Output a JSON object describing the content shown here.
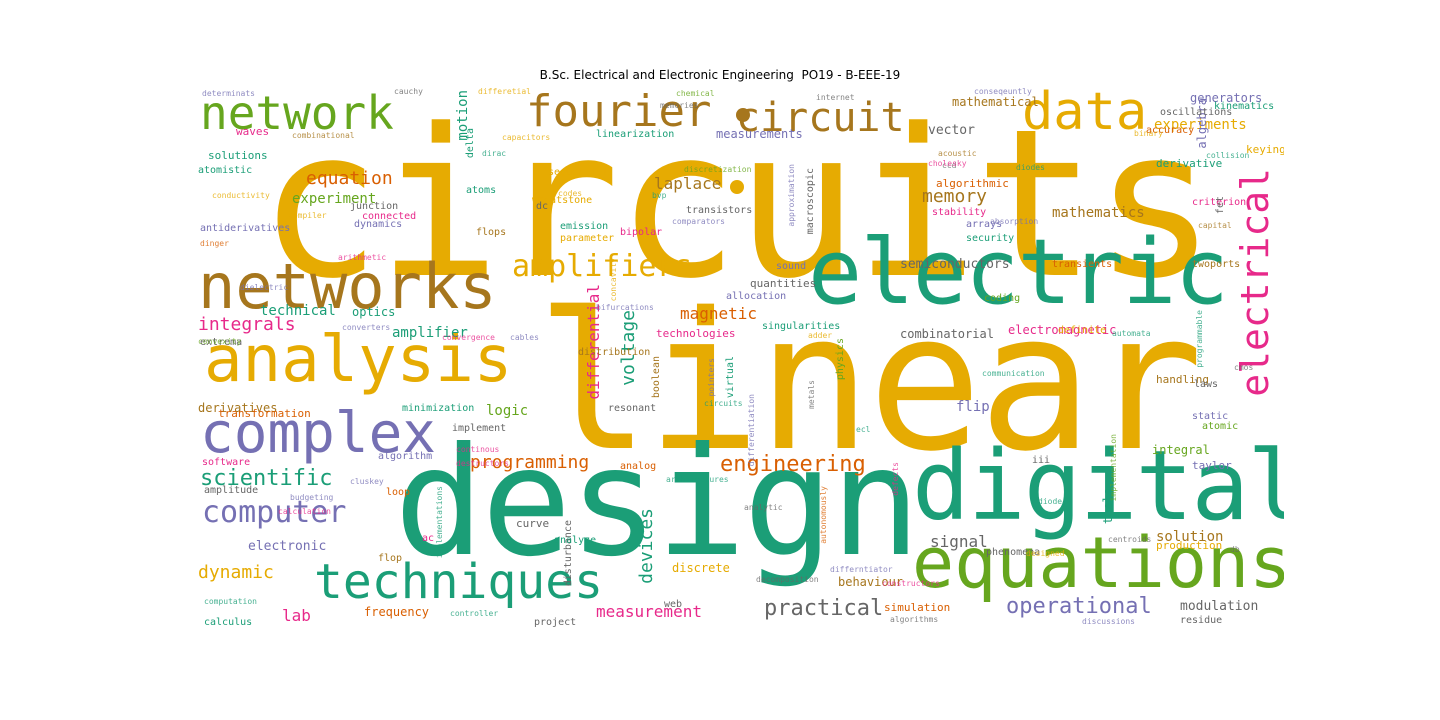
{
  "title": "B.Sc. Electrical and Electronic Engineering  PO19 - B-EEE-19",
  "colors": {
    "gold": "#e6ab02",
    "teal": "#1b9e77",
    "purple": "#7570b3",
    "pink": "#e7298a",
    "olive": "#66a61e",
    "brown": "#a6761d",
    "orange": "#d95f02",
    "gray": "#666666"
  },
  "words": [
    {
      "t": "circuits",
      "c": "gold"
    },
    {
      "t": "linear",
      "c": "gold"
    },
    {
      "t": "design",
      "c": "teal"
    },
    {
      "t": "electric",
      "c": "teal"
    },
    {
      "t": "digital",
      "c": "teal"
    },
    {
      "t": "equations",
      "c": "olive"
    },
    {
      "t": "networks",
      "c": "brown"
    },
    {
      "t": "analysis",
      "c": "gold"
    },
    {
      "t": "complex",
      "c": "purple"
    },
    {
      "t": "techniques",
      "c": "teal"
    },
    {
      "t": "network",
      "c": "olive"
    },
    {
      "t": "fourier",
      "c": "brown"
    },
    {
      "t": "circuit",
      "c": "brown"
    },
    {
      "t": "data",
      "c": "gold"
    },
    {
      "t": "electrical",
      "c": "pink"
    },
    {
      "t": "amplifiers",
      "c": "gold"
    },
    {
      "t": "computer",
      "c": "purple"
    },
    {
      "t": "operational",
      "c": "purple"
    },
    {
      "t": "engineering",
      "c": "orange"
    },
    {
      "t": "programming",
      "c": "orange"
    },
    {
      "t": "practical",
      "c": "gray"
    },
    {
      "t": "scientific",
      "c": "teal"
    },
    {
      "t": "dynamic",
      "c": "gold"
    },
    {
      "t": "integrals",
      "c": "pink"
    },
    {
      "t": "equation",
      "c": "orange"
    },
    {
      "t": "measurement",
      "c": "pink"
    },
    {
      "t": "laplace",
      "c": "brown"
    },
    {
      "t": "memory",
      "c": "brown"
    },
    {
      "t": "voltage",
      "c": "teal"
    },
    {
      "t": "devices",
      "c": "teal"
    },
    {
      "t": "differential",
      "c": "pink"
    },
    {
      "t": "magnetic",
      "c": "orange"
    },
    {
      "t": "experiment",
      "c": "olive"
    },
    {
      "t": "technical",
      "c": "teal"
    },
    {
      "t": "solution",
      "c": "brown"
    },
    {
      "t": "signal",
      "c": "gray"
    },
    {
      "t": "lab",
      "c": "pink"
    },
    {
      "t": "experiments",
      "c": "gold"
    },
    {
      "t": "mathematics",
      "c": "brown"
    },
    {
      "t": "motion",
      "c": "teal"
    },
    {
      "t": "logic",
      "c": "olive"
    },
    {
      "t": "flip",
      "c": "purple"
    },
    {
      "t": "amplifier",
      "c": "teal"
    },
    {
      "t": "electronic",
      "c": "purple"
    },
    {
      "t": "modulation",
      "c": "gray"
    },
    {
      "t": "semiconductors",
      "c": "gray"
    },
    {
      "t": "combinatorial",
      "c": "gray"
    },
    {
      "t": "electromagnetic",
      "c": "pink"
    },
    {
      "t": "integral",
      "c": "olive"
    },
    {
      "t": "mathematical",
      "c": "brown"
    },
    {
      "t": "generators",
      "c": "purple"
    },
    {
      "t": "measurements",
      "c": "purple"
    },
    {
      "t": "vector",
      "c": "gray"
    },
    {
      "t": "optics",
      "c": "teal"
    },
    {
      "t": "derivatives",
      "c": "brown"
    },
    {
      "t": "transformation",
      "c": "orange"
    },
    {
      "t": "frequency",
      "c": "orange"
    },
    {
      "t": "discrete",
      "c": "gold"
    },
    {
      "t": "behaviour",
      "c": "brown"
    },
    {
      "t": "curve",
      "c": "gray"
    },
    {
      "t": "quantities",
      "c": "gray"
    },
    {
      "t": "technologies",
      "c": "pink"
    },
    {
      "t": "algorithmic",
      "c": "orange"
    },
    {
      "t": "algebra",
      "c": "purple"
    },
    {
      "t": "derivative",
      "c": "teal"
    },
    {
      "t": "handling",
      "c": "brown"
    },
    {
      "t": "production",
      "c": "gold"
    },
    {
      "t": "simulation",
      "c": "orange"
    },
    {
      "t": "tools",
      "c": "teal"
    },
    {
      "t": "taylor",
      "c": "purple"
    },
    {
      "t": "keying",
      "c": "gold"
    },
    {
      "t": "waves",
      "c": "pink"
    },
    {
      "t": "solutions",
      "c": "teal"
    },
    {
      "t": "atomistic",
      "c": "teal"
    },
    {
      "t": "oscillations",
      "c": "gray"
    },
    {
      "t": "kinematics",
      "c": "teal"
    },
    {
      "t": "accuracy",
      "c": "orange"
    },
    {
      "t": "stability",
      "c": "pink"
    },
    {
      "t": "sequential",
      "c": "gold"
    },
    {
      "t": "wheatstone",
      "c": "gold"
    },
    {
      "t": "connected",
      "c": "pink"
    },
    {
      "t": "junction",
      "c": "gray"
    },
    {
      "t": "dynamics",
      "c": "purple"
    },
    {
      "t": "atoms",
      "c": "teal"
    },
    {
      "t": "delta",
      "c": "teal"
    },
    {
      "t": "bipolar",
      "c": "pink"
    },
    {
      "t": "emission",
      "c": "teal"
    },
    {
      "t": "parameter",
      "c": "gold"
    },
    {
      "t": "transistors",
      "c": "gray"
    },
    {
      "t": "macroscopic",
      "c": "gray"
    },
    {
      "t": "distribution",
      "c": "brown"
    },
    {
      "t": "allocation",
      "c": "purple"
    },
    {
      "t": "sound",
      "c": "purple"
    },
    {
      "t": "transients",
      "c": "orange"
    },
    {
      "t": "twoports",
      "c": "brown"
    },
    {
      "t": "coding",
      "c": "olive"
    },
    {
      "t": "definite",
      "c": "gold"
    },
    {
      "t": "physics",
      "c": "olive"
    },
    {
      "t": "boolean",
      "c": "brown"
    },
    {
      "t": "virtual",
      "c": "teal"
    },
    {
      "t": "resonant",
      "c": "gray"
    },
    {
      "t": "implement",
      "c": "gray"
    },
    {
      "t": "minimization",
      "c": "teal"
    },
    {
      "t": "algorithm",
      "c": "purple"
    },
    {
      "t": "software",
      "c": "pink"
    },
    {
      "t": "amplitude",
      "c": "gray"
    },
    {
      "t": "loop",
      "c": "orange"
    },
    {
      "t": "analog",
      "c": "orange"
    },
    {
      "t": "web",
      "c": "gray"
    },
    {
      "t": "calculus",
      "c": "teal"
    },
    {
      "t": "flop",
      "c": "brown"
    },
    {
      "t": "ac",
      "c": "pink"
    },
    {
      "t": "antiderivatives",
      "c": "purple"
    },
    {
      "t": "flops",
      "c": "brown"
    },
    {
      "t": "dc",
      "c": "gray"
    },
    {
      "t": "iii",
      "c": "gray"
    },
    {
      "t": "laws",
      "c": "gray"
    },
    {
      "t": "static",
      "c": "purple"
    },
    {
      "t": "atomic",
      "c": "olive"
    },
    {
      "t": "arrays",
      "c": "purple"
    },
    {
      "t": "security",
      "c": "teal"
    },
    {
      "t": "criterion",
      "c": "pink"
    },
    {
      "t": "fet",
      "c": "gray"
    },
    {
      "t": "project",
      "c": "gray"
    },
    {
      "t": "phenomena",
      "c": "gray"
    },
    {
      "t": "residue",
      "c": "gray"
    },
    {
      "t": "singularities",
      "c": "teal"
    },
    {
      "t": "extrema",
      "c": "gray"
    },
    {
      "t": "linearization",
      "c": "teal"
    },
    {
      "t": "disturbance",
      "c": "gray"
    },
    {
      "t": "analyze",
      "c": "teal"
    },
    {
      "t": "exponential",
      "c": "teal"
    },
    {
      "t": "curves",
      "c": "teal"
    },
    {
      "t": "electronic",
      "c": "purple"
    }
  ],
  "small_words": [
    {
      "t": "determinats",
      "c": "purple"
    },
    {
      "t": "cauchy",
      "c": "gray"
    },
    {
      "t": "differetial",
      "c": "gold"
    },
    {
      "t": "chemical",
      "c": "olive"
    },
    {
      "t": "memories",
      "c": "gray"
    },
    {
      "t": "internet",
      "c": "gray"
    },
    {
      "t": "conseqeuntly",
      "c": "purple"
    },
    {
      "t": "combinational",
      "c": "brown"
    },
    {
      "t": "capacitors",
      "c": "gold"
    },
    {
      "t": "binary",
      "c": "gold"
    },
    {
      "t": "collision",
      "c": "teal"
    },
    {
      "t": "dirac",
      "c": "teal"
    },
    {
      "t": "discretization",
      "c": "olive"
    },
    {
      "t": "acoustic",
      "c": "brown"
    },
    {
      "t": "ccd",
      "c": "gray"
    },
    {
      "t": "diodes",
      "c": "teal"
    },
    {
      "t": "codes",
      "c": "gold"
    },
    {
      "t": "bvp",
      "c": "teal"
    },
    {
      "t": "comparators",
      "c": "purple"
    },
    {
      "t": "absorption",
      "c": "purple"
    },
    {
      "t": "capital",
      "c": "brown"
    },
    {
      "t": "compiler",
      "c": "gold"
    },
    {
      "t": "dinger",
      "c": "orange"
    },
    {
      "t": "arithmetic",
      "c": "pink"
    },
    {
      "t": "dielectric",
      "c": "purple"
    },
    {
      "t": "converters",
      "c": "purple"
    },
    {
      "t": "bifurcations",
      "c": "purple"
    },
    {
      "t": "cables",
      "c": "purple"
    },
    {
      "t": "convexity",
      "c": "olive"
    },
    {
      "t": "convergence",
      "c": "pink"
    },
    {
      "t": "automata",
      "c": "teal"
    },
    {
      "t": "adder",
      "c": "gold"
    },
    {
      "t": "cmos",
      "c": "gray"
    },
    {
      "t": "communication",
      "c": "teal"
    },
    {
      "t": "circuits",
      "c": "teal"
    },
    {
      "t": "ecl",
      "c": "teal"
    },
    {
      "t": "continous",
      "c": "pink"
    },
    {
      "t": "destructors",
      "c": "pink"
    },
    {
      "t": "cluskey",
      "c": "purple"
    },
    {
      "t": "architectures",
      "c": "teal"
    },
    {
      "t": "budgeting",
      "c": "purple"
    },
    {
      "t": "diode",
      "c": "teal"
    },
    {
      "t": "calculation",
      "c": "pink"
    },
    {
      "t": "centroids",
      "c": "gray"
    },
    {
      "t": "db",
      "c": "gray"
    },
    {
      "t": "designed",
      "c": "gold"
    },
    {
      "t": "decomposition",
      "c": "gray"
    },
    {
      "t": "differntiator",
      "c": "purple"
    },
    {
      "t": "constructors",
      "c": "pink"
    },
    {
      "t": "computation",
      "c": "teal"
    },
    {
      "t": "controller",
      "c": "teal"
    },
    {
      "t": "algorithms",
      "c": "gray"
    },
    {
      "t": "discussions",
      "c": "purple"
    },
    {
      "t": "concavity",
      "c": "gold"
    },
    {
      "t": "conductivity",
      "c": "gold"
    },
    {
      "t": "cholesky",
      "c": "pink"
    },
    {
      "t": "approximation",
      "c": "purple"
    },
    {
      "t": "pointers",
      "c": "purple"
    },
    {
      "t": "differentiation",
      "c": "purple"
    },
    {
      "t": "metals",
      "c": "gray"
    },
    {
      "t": "defects",
      "c": "pink"
    },
    {
      "t": "autonomously",
      "c": "orange"
    },
    {
      "t": "analytic",
      "c": "gray"
    },
    {
      "t": "implementations",
      "c": "teal"
    },
    {
      "t": "programmable",
      "c": "teal"
    },
    {
      "t": "implementation",
      "c": "olive"
    }
  ]
}
